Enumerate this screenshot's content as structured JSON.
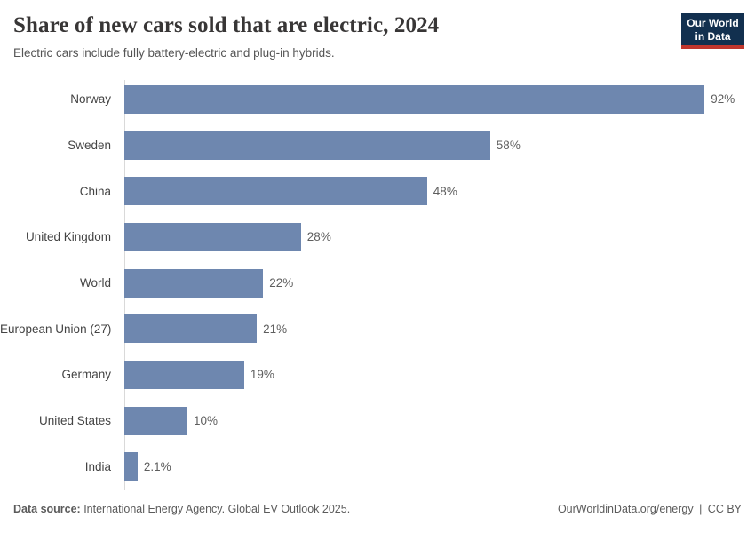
{
  "header": {
    "title": "Share of new cars sold that are electric, 2024",
    "subtitle": "Electric cars include fully battery-electric and plug-in hybrids.",
    "logo": {
      "line1": "Our World",
      "line2": "in Data"
    }
  },
  "chart_data": {
    "type": "bar",
    "orientation": "horizontal",
    "title": "Share of new cars sold that are electric, 2024",
    "categories": [
      "Norway",
      "Sweden",
      "China",
      "United Kingdom",
      "World",
      "European Union (27)",
      "Germany",
      "United States",
      "India"
    ],
    "values": [
      92,
      58,
      48,
      28,
      22,
      21,
      19,
      10,
      2.1
    ],
    "value_labels": [
      "92%",
      "58%",
      "48%",
      "28%",
      "22%",
      "21%",
      "19%",
      "10%",
      "2.1%"
    ],
    "unit": "%",
    "xlim": [
      0,
      100
    ],
    "grid": "off",
    "legend": "none",
    "bar_color": "#6e87af"
  },
  "footer": {
    "source_label": "Data source:",
    "source_text": " International Energy Agency. Global EV Outlook 2025.",
    "site": "OurWorldinData.org/energy",
    "separator": "|",
    "license": "CC BY"
  },
  "colors": {
    "bar": "#6e87af",
    "title": "#383636",
    "subtitle": "#555555",
    "category_label": "#444444",
    "value_label": "#5e5e5e",
    "axis_line": "#d9d9d9",
    "footer_text": "#5b5b5b",
    "logo_background": "#12304f",
    "logo_accent": "#c0362d"
  }
}
